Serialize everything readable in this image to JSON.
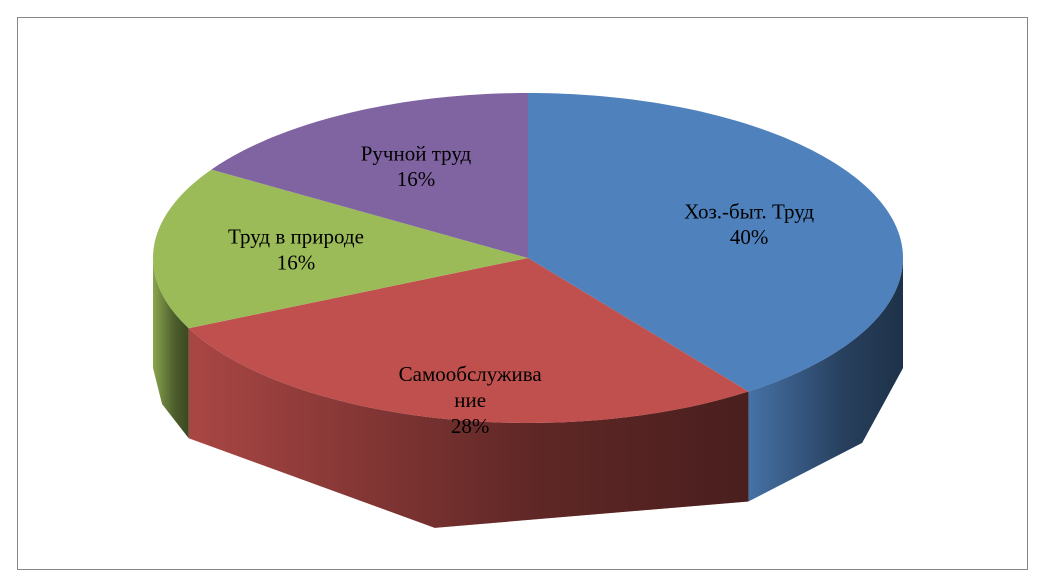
{
  "chart_data": {
    "type": "pie3d",
    "categories": [
      "Хоз.-быт. Труд",
      "Самообслуживание",
      "Труд в природе",
      "Ручной труд"
    ],
    "values": [
      40,
      28,
      16,
      16
    ],
    "value_labels": [
      "40%",
      "28%",
      "16%",
      "16%"
    ],
    "colors": [
      "#4f81bd",
      "#c0504d",
      "#9bbb59",
      "#8064a2"
    ]
  }
}
